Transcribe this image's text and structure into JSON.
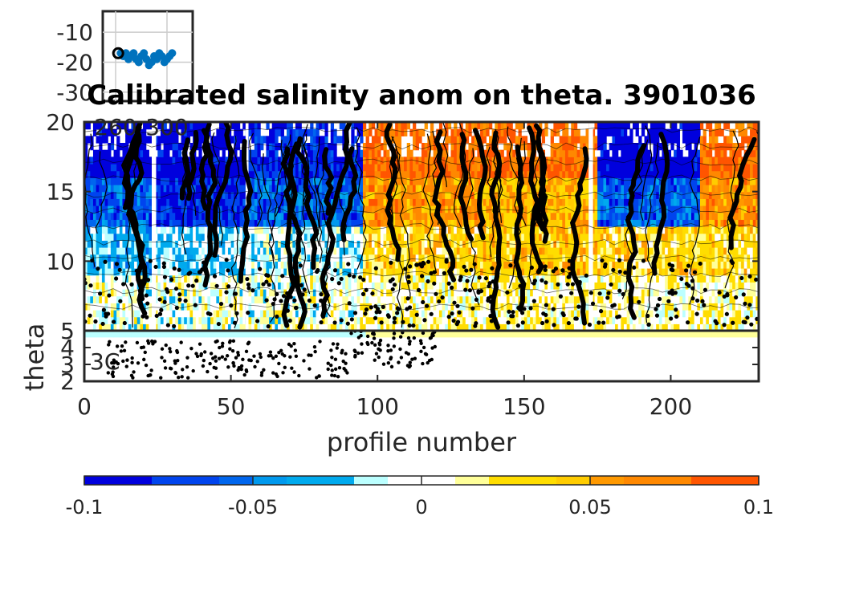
{
  "chart_data": [
    {
      "type": "heatmap",
      "title": "Calibrated salinity anom on theta. 3901036",
      "xlabel": "profile number",
      "ylabel": "theta",
      "xlim": [
        0,
        230
      ],
      "ylim_upper": [
        5,
        20
      ],
      "ylim_lower": [
        2,
        5
      ],
      "x_ticks": [
        "0",
        "50",
        "100",
        "150",
        "200"
      ],
      "x_tick_values": [
        0,
        50,
        100,
        150,
        200
      ],
      "y_ticks_upper": [
        "5",
        "10",
        "15",
        "20"
      ],
      "y_tick_values_upper": [
        5,
        10,
        15,
        20
      ],
      "y_ticks_lower": [
        "2",
        "3",
        "4"
      ],
      "y_tick_values_lower": [
        2,
        3,
        4
      ],
      "lower_axis_note": "3C",
      "colorbar": {
        "range": [
          -0.1,
          0.1
        ],
        "tick_labels": [
          "-0.1",
          "-0.05",
          "0",
          "0.05",
          "0.1"
        ],
        "tick_values": [
          -0.1,
          -0.05,
          0,
          0.05,
          0.1
        ],
        "levels": [
          -0.1,
          -0.08,
          -0.06,
          -0.05,
          -0.04,
          -0.02,
          -0.01,
          0,
          0.01,
          0.02,
          0.04,
          0.05,
          0.06,
          0.08,
          0.1
        ],
        "colors": [
          "#0000dd",
          "#0044ee",
          "#0066ee",
          "#0099ee",
          "#00aaee",
          "#bbffff",
          "#ffffff",
          "#ffffff",
          "#ffff99",
          "#ffdd00",
          "#ffcc00",
          "#ff9900",
          "#ff8800",
          "#ff5500"
        ]
      },
      "bands": [
        {
          "x": [
            0,
            23
          ],
          "dominant": [
            -0.1,
            -0.06,
            -0.03,
            0.0
          ]
        },
        {
          "x": [
            23,
            55
          ],
          "dominant": [
            -0.1,
            -0.08,
            -0.02,
            0.0
          ]
        },
        {
          "x": [
            55,
            95
          ],
          "dominant": [
            -0.08,
            -0.06,
            -0.01,
            0.0
          ]
        },
        {
          "x": [
            95,
            135
          ],
          "dominant": [
            0.08,
            0.06,
            0.03,
            0.01
          ]
        },
        {
          "x": [
            135,
            175
          ],
          "dominant": [
            0.08,
            0.05,
            0.04,
            0.01
          ]
        },
        {
          "x": [
            175,
            210
          ],
          "dominant": [
            -0.1,
            -0.06,
            0.03,
            0.01
          ]
        },
        {
          "x": [
            210,
            230
          ],
          "dominant": [
            0.08,
            0.06,
            0.03,
            0.01
          ]
        }
      ]
    },
    {
      "type": "scatter",
      "title": "",
      "x_ticks": [
        "260",
        "300"
      ],
      "x_tick_values": [
        260,
        300
      ],
      "y_ticks": [
        "-10",
        "-20",
        "-30"
      ],
      "y_tick_values": [
        -10,
        -20,
        -30
      ],
      "xlim": [
        250,
        320
      ],
      "ylim": [
        -33,
        -3
      ],
      "marker_start": {
        "x": 262,
        "y": -17
      },
      "points": [
        {
          "x": 264,
          "y": -17
        },
        {
          "x": 266,
          "y": -18
        },
        {
          "x": 268,
          "y": -17
        },
        {
          "x": 270,
          "y": -19
        },
        {
          "x": 272,
          "y": -18
        },
        {
          "x": 274,
          "y": -17
        },
        {
          "x": 276,
          "y": -19
        },
        {
          "x": 278,
          "y": -20
        },
        {
          "x": 280,
          "y": -18
        },
        {
          "x": 282,
          "y": -17
        },
        {
          "x": 284,
          "y": -19
        },
        {
          "x": 286,
          "y": -21
        },
        {
          "x": 288,
          "y": -20
        },
        {
          "x": 290,
          "y": -18
        },
        {
          "x": 292,
          "y": -19
        },
        {
          "x": 294,
          "y": -17
        },
        {
          "x": 296,
          "y": -18
        },
        {
          "x": 298,
          "y": -20
        },
        {
          "x": 300,
          "y": -19
        },
        {
          "x": 302,
          "y": -18
        },
        {
          "x": 304,
          "y": -17
        }
      ]
    }
  ]
}
